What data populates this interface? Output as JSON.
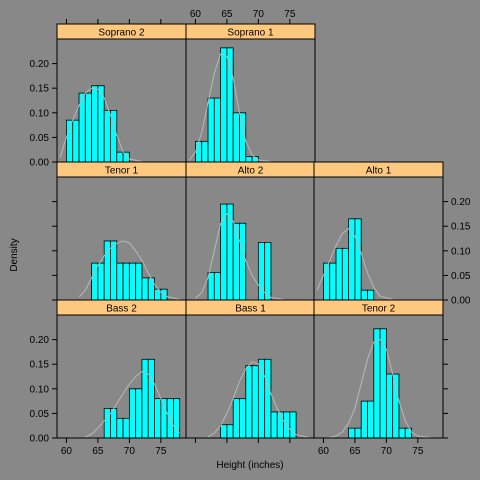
{
  "chart_data": {
    "type": "bar",
    "xlabel": "Height (inches)",
    "ylabel": "Density",
    "x_ticks": [
      60,
      65,
      70,
      75
    ],
    "y_ticks": [
      0.0,
      0.05,
      0.1,
      0.15,
      0.2
    ],
    "y_tick_labels": [
      "0.00",
      "0.05",
      "0.10",
      "0.15",
      "0.20"
    ],
    "xlim": [
      58.5,
      79
    ],
    "ylim": [
      0,
      0.25
    ],
    "colors": {
      "bar_fill": "#00ffff",
      "strip": "#ffc87f",
      "density_line": "#b8b8b8",
      "background": "#888888"
    },
    "panels": [
      {
        "name": "Soprano 2",
        "row": 0,
        "col": 0,
        "bins": [
          [
            60,
            61,
            0.085
          ],
          [
            61,
            62,
            0.085
          ],
          [
            62,
            63,
            0.14
          ],
          [
            63,
            64,
            0.14
          ],
          [
            64,
            65,
            0.155
          ],
          [
            65,
            66,
            0.155
          ],
          [
            66,
            67,
            0.105
          ],
          [
            67,
            68,
            0.105
          ],
          [
            68,
            69,
            0.02
          ],
          [
            69,
            70,
            0.02
          ]
        ],
        "density": [
          [
            59,
            0.01
          ],
          [
            60,
            0.05
          ],
          [
            61,
            0.085
          ],
          [
            62,
            0.115
          ],
          [
            63,
            0.14
          ],
          [
            64,
            0.15
          ],
          [
            65,
            0.148
          ],
          [
            66,
            0.13
          ],
          [
            67,
            0.095
          ],
          [
            68,
            0.055
          ],
          [
            69,
            0.02
          ],
          [
            70,
            0.006
          ],
          [
            72,
            0.001
          ]
        ]
      },
      {
        "name": "Soprano 1",
        "row": 0,
        "col": 1,
        "bins": [
          [
            60,
            61,
            0.042
          ],
          [
            61,
            62,
            0.042
          ],
          [
            62,
            63,
            0.13
          ],
          [
            63,
            64,
            0.13
          ],
          [
            64,
            65,
            0.232
          ],
          [
            65,
            66,
            0.232
          ],
          [
            66,
            67,
            0.1
          ],
          [
            67,
            68,
            0.1
          ],
          [
            68,
            69,
            0.011
          ],
          [
            69,
            70,
            0.011
          ]
        ],
        "density": [
          [
            59,
            0.003
          ],
          [
            60,
            0.02
          ],
          [
            61,
            0.06
          ],
          [
            62,
            0.12
          ],
          [
            63,
            0.18
          ],
          [
            64,
            0.22
          ],
          [
            65,
            0.215
          ],
          [
            66,
            0.17
          ],
          [
            67,
            0.1
          ],
          [
            68,
            0.042
          ],
          [
            69,
            0.014
          ],
          [
            70,
            0.004
          ],
          [
            72,
            0.001
          ]
        ]
      },
      {
        "name": "Tenor 1",
        "row": 1,
        "col": 0,
        "bins": [
          [
            64,
            65,
            0.075
          ],
          [
            65,
            66,
            0.075
          ],
          [
            66,
            67,
            0.12
          ],
          [
            67,
            68,
            0.12
          ],
          [
            68,
            69,
            0.075
          ],
          [
            69,
            70,
            0.075
          ],
          [
            70,
            71,
            0.075
          ],
          [
            71,
            72,
            0.075
          ],
          [
            72,
            73,
            0.045
          ],
          [
            73,
            74,
            0.045
          ],
          [
            74,
            75,
            0.022
          ],
          [
            75,
            76,
            0.022
          ]
        ],
        "density": [
          [
            62,
            0.006
          ],
          [
            63,
            0.02
          ],
          [
            64,
            0.045
          ],
          [
            65,
            0.07
          ],
          [
            66,
            0.09
          ],
          [
            67,
            0.105
          ],
          [
            68,
            0.115
          ],
          [
            69,
            0.12
          ],
          [
            70,
            0.116
          ],
          [
            71,
            0.1
          ],
          [
            72,
            0.08
          ],
          [
            73,
            0.055
          ],
          [
            74,
            0.032
          ],
          [
            75,
            0.016
          ],
          [
            76,
            0.007
          ],
          [
            78,
            0.001
          ]
        ]
      },
      {
        "name": "Alto 2",
        "row": 1,
        "col": 1,
        "bins": [
          [
            62,
            63,
            0.056
          ],
          [
            63,
            64,
            0.056
          ],
          [
            64,
            65,
            0.195
          ],
          [
            65,
            66,
            0.195
          ],
          [
            66,
            67,
            0.156
          ],
          [
            67,
            68,
            0.156
          ],
          [
            68,
            69,
            0.0
          ],
          [
            69,
            70,
            0.0
          ],
          [
            70,
            71,
            0.117
          ],
          [
            71,
            72,
            0.117
          ]
        ],
        "density": [
          [
            60,
            0.003
          ],
          [
            61,
            0.015
          ],
          [
            62,
            0.045
          ],
          [
            63,
            0.1
          ],
          [
            64,
            0.155
          ],
          [
            65,
            0.175
          ],
          [
            66,
            0.16
          ],
          [
            67,
            0.12
          ],
          [
            68,
            0.08
          ],
          [
            69,
            0.05
          ],
          [
            70,
            0.03
          ],
          [
            71,
            0.015
          ],
          [
            72,
            0.005
          ],
          [
            74,
            0.001
          ]
        ]
      },
      {
        "name": "Alto 1",
        "row": 1,
        "col": 2,
        "bins": [
          [
            60,
            61,
            0.075
          ],
          [
            61,
            62,
            0.075
          ],
          [
            62,
            63,
            0.105
          ],
          [
            63,
            64,
            0.105
          ],
          [
            64,
            65,
            0.165
          ],
          [
            65,
            66,
            0.165
          ],
          [
            66,
            67,
            0.02
          ],
          [
            67,
            68,
            0.02
          ]
        ],
        "density": [
          [
            59,
            0.02
          ],
          [
            60,
            0.05
          ],
          [
            61,
            0.08
          ],
          [
            62,
            0.11
          ],
          [
            63,
            0.135
          ],
          [
            64,
            0.145
          ],
          [
            65,
            0.13
          ],
          [
            66,
            0.095
          ],
          [
            67,
            0.055
          ],
          [
            68,
            0.025
          ],
          [
            69,
            0.008
          ],
          [
            71,
            0.001
          ]
        ]
      },
      {
        "name": "Bass 2",
        "row": 2,
        "col": 0,
        "bins": [
          [
            66,
            67,
            0.06
          ],
          [
            67,
            68,
            0.06
          ],
          [
            68,
            69,
            0.04
          ],
          [
            69,
            70,
            0.04
          ],
          [
            70,
            71,
            0.1
          ],
          [
            71,
            72,
            0.1
          ],
          [
            72,
            73,
            0.16
          ],
          [
            73,
            74,
            0.16
          ],
          [
            74,
            75,
            0.08
          ],
          [
            75,
            76,
            0.08
          ],
          [
            76,
            77,
            0.08
          ],
          [
            77,
            78,
            0.08
          ]
        ],
        "density": [
          [
            63,
            0.002
          ],
          [
            64,
            0.008
          ],
          [
            65,
            0.02
          ],
          [
            66,
            0.035
          ],
          [
            67,
            0.05
          ],
          [
            68,
            0.07
          ],
          [
            69,
            0.09
          ],
          [
            70,
            0.11
          ],
          [
            71,
            0.125
          ],
          [
            72,
            0.135
          ],
          [
            73,
            0.13
          ],
          [
            74,
            0.11
          ],
          [
            75,
            0.08
          ],
          [
            76,
            0.05
          ],
          [
            77,
            0.025
          ],
          [
            78,
            0.01
          ]
        ]
      },
      {
        "name": "Bass 1",
        "row": 2,
        "col": 1,
        "bins": [
          [
            64,
            65,
            0.027
          ],
          [
            65,
            66,
            0.027
          ],
          [
            66,
            67,
            0.08
          ],
          [
            67,
            68,
            0.08
          ],
          [
            68,
            69,
            0.147
          ],
          [
            69,
            70,
            0.147
          ],
          [
            70,
            71,
            0.16
          ],
          [
            71,
            72,
            0.16
          ],
          [
            72,
            73,
            0.053
          ],
          [
            73,
            74,
            0.053
          ],
          [
            74,
            75,
            0.053
          ],
          [
            75,
            76,
            0.053
          ]
        ],
        "density": [
          [
            62,
            0.002
          ],
          [
            63,
            0.01
          ],
          [
            64,
            0.025
          ],
          [
            65,
            0.05
          ],
          [
            66,
            0.08
          ],
          [
            67,
            0.115
          ],
          [
            68,
            0.14
          ],
          [
            69,
            0.155
          ],
          [
            70,
            0.15
          ],
          [
            71,
            0.125
          ],
          [
            72,
            0.09
          ],
          [
            73,
            0.06
          ],
          [
            74,
            0.035
          ],
          [
            75,
            0.018
          ],
          [
            76,
            0.007
          ],
          [
            78,
            0.001
          ]
        ]
      },
      {
        "name": "Tenor 2",
        "row": 2,
        "col": 2,
        "bins": [
          [
            64,
            65,
            0.02
          ],
          [
            65,
            66,
            0.02
          ],
          [
            66,
            67,
            0.075
          ],
          [
            67,
            68,
            0.075
          ],
          [
            68,
            69,
            0.222
          ],
          [
            69,
            70,
            0.222
          ],
          [
            70,
            71,
            0.13
          ],
          [
            71,
            72,
            0.13
          ],
          [
            72,
            73,
            0.02
          ],
          [
            73,
            74,
            0.02
          ]
        ],
        "density": [
          [
            61,
            0.001
          ],
          [
            62,
            0.004
          ],
          [
            63,
            0.012
          ],
          [
            64,
            0.03
          ],
          [
            65,
            0.06
          ],
          [
            66,
            0.11
          ],
          [
            67,
            0.16
          ],
          [
            68,
            0.195
          ],
          [
            69,
            0.2
          ],
          [
            70,
            0.18
          ],
          [
            71,
            0.13
          ],
          [
            72,
            0.075
          ],
          [
            73,
            0.035
          ],
          [
            74,
            0.012
          ],
          [
            75,
            0.004
          ],
          [
            77,
            0.001
          ]
        ]
      }
    ]
  }
}
